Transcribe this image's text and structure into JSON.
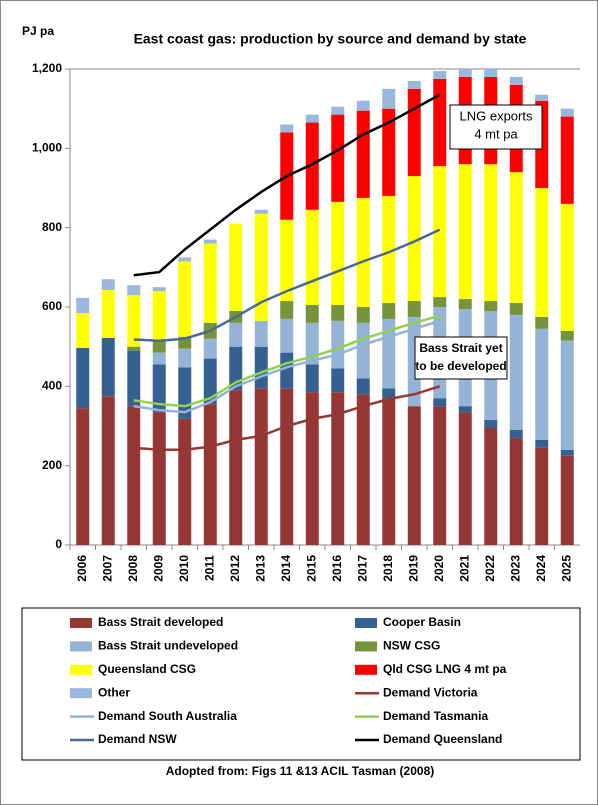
{
  "chart_data": {
    "type": "bar",
    "stacked": true,
    "title": "East coast gas: production by source and demand by state",
    "y_label": "PJ pa",
    "source": "Adopted from: Figs 11 &13 ACIL Tasman (2008)",
    "categories": [
      "2006",
      "2007",
      "2008",
      "2009",
      "2010",
      "2011",
      "2012",
      "2013",
      "2014",
      "2015",
      "2016",
      "2017",
      "2018",
      "2019",
      "2020",
      "2021",
      "2022",
      "2023",
      "2024",
      "2025"
    ],
    "ylim": [
      0,
      1200
    ],
    "yticks": [
      0,
      200,
      400,
      600,
      800,
      {
        "value": 1000,
        "label": "1,000"
      },
      {
        "value": 1200,
        "label": "1,200"
      }
    ],
    "annotations": [
      {
        "text": [
          "LNG exports",
          "4 mt pa"
        ]
      },
      {
        "text": [
          "Bass Strait yet",
          "to be developed"
        ]
      }
    ],
    "series": [
      {
        "name": "Bass Strait developed",
        "type": "bar",
        "color": "#953735",
        "values": [
          345,
          375,
          350,
          335,
          318,
          355,
          390,
          395,
          395,
          385,
          385,
          380,
          370,
          350,
          350,
          335,
          295,
          270,
          245,
          225
        ]
      },
      {
        "name": "Cooper Basin",
        "type": "bar",
        "color": "#376092",
        "values": [
          152,
          147,
          140,
          120,
          130,
          115,
          110,
          105,
          90,
          70,
          60,
          40,
          25,
          0,
          20,
          15,
          20,
          20,
          20,
          15
        ]
      },
      {
        "name": "Bass Strait undeveloped",
        "type": "bar",
        "color": "#95b3d7",
        "values": [
          0,
          0,
          0,
          30,
          47,
          50,
          60,
          65,
          85,
          105,
          120,
          140,
          175,
          225,
          230,
          245,
          275,
          290,
          280,
          275
        ]
      },
      {
        "name": "NSW CSG",
        "type": "bar",
        "color": "#77933c",
        "values": [
          0,
          0,
          10,
          30,
          30,
          40,
          30,
          0,
          45,
          45,
          40,
          40,
          40,
          40,
          25,
          25,
          25,
          30,
          30,
          25
        ]
      },
      {
        "name": "Queensland CSG",
        "type": "bar",
        "color": "#ffff00",
        "values": [
          88,
          121,
          130,
          125,
          190,
          200,
          220,
          270,
          205,
          240,
          260,
          275,
          270,
          315,
          330,
          340,
          345,
          330,
          325,
          320
        ]
      },
      {
        "name": "Qld CSG LNG 4 mt pa",
        "type": "bar",
        "color": "#ff0000",
        "values": [
          0,
          0,
          0,
          0,
          0,
          0,
          0,
          0,
          220,
          220,
          220,
          220,
          220,
          220,
          220,
          220,
          220,
          220,
          220,
          220
        ]
      },
      {
        "name": "Other",
        "type": "bar",
        "color": "#9bb7de",
        "values": [
          38,
          27,
          25,
          10,
          10,
          10,
          0,
          10,
          20,
          20,
          20,
          25,
          50,
          20,
          20,
          20,
          20,
          20,
          15,
          20
        ]
      },
      {
        "name": "Demand Victoria",
        "type": "line",
        "color": "#953735",
        "values": [
          null,
          null,
          245,
          240,
          240,
          248,
          265,
          275,
          300,
          318,
          330,
          350,
          368,
          380,
          400,
          null,
          null,
          null,
          null,
          null
        ]
      },
      {
        "name": "Demand South Australia",
        "type": "line",
        "color": "#95b3d7",
        "values": [
          null,
          null,
          350,
          340,
          335,
          360,
          400,
          425,
          448,
          465,
          480,
          505,
          525,
          545,
          565,
          null,
          null,
          null,
          null,
          null
        ]
      },
      {
        "name": "Demand Tasmania",
        "type": "line",
        "color": "#92d050",
        "values": [
          null,
          null,
          365,
          355,
          350,
          370,
          410,
          435,
          458,
          475,
          495,
          520,
          540,
          560,
          578,
          null,
          null,
          null,
          null,
          null
        ]
      },
      {
        "name": "Demand NSW",
        "type": "line",
        "color": "#4a6a96",
        "values": [
          null,
          null,
          518,
          515,
          520,
          540,
          575,
          612,
          640,
          665,
          690,
          715,
          738,
          765,
          795,
          null,
          null,
          null,
          null,
          null
        ]
      },
      {
        "name": "Demand Queensland",
        "type": "line",
        "color": "#000000",
        "values": [
          null,
          null,
          680,
          688,
          745,
          795,
          845,
          890,
          930,
          960,
          995,
          1035,
          1065,
          1100,
          1135,
          null,
          null,
          null,
          null,
          null
        ]
      }
    ]
  }
}
